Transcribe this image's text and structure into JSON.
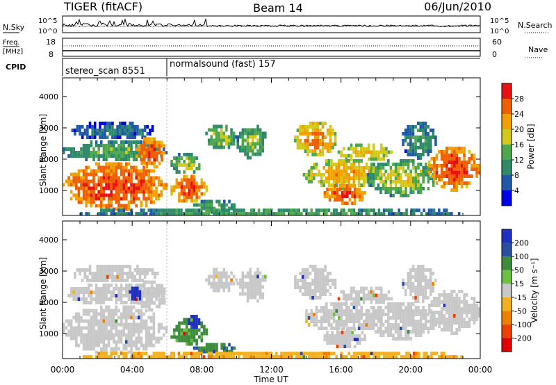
{
  "header": {
    "title": "TIGER (fitACF)",
    "beam": "Beam 14",
    "date": "06/Jun/2010"
  },
  "strip": {
    "nsky_label": "N.Sky",
    "nsky_ticks": [
      "10^5",
      "10^0"
    ],
    "nsearch_label": "N.Search",
    "nsearch_ticks": [
      "10^5",
      "10^0"
    ],
    "freq_label": "Freq.",
    "freq_unit": "[MHz]",
    "freq_ticks": [
      "18",
      "8"
    ],
    "nave_label": "Nave",
    "nave_ticks": [
      "60",
      "0"
    ],
    "cpid_label": "CPID",
    "cpid_segments": [
      {
        "name": "stereo_scan",
        "id": "8551",
        "start_h": 0,
        "end_h": 6
      },
      {
        "name": "normalsound (fast)",
        "id": "157",
        "start_h": 6,
        "end_h": 24
      }
    ]
  },
  "axes": {
    "ylabel": "Slant Range [km]",
    "xlabel": "Time UT",
    "yticks": [
      "1000",
      "2000",
      "3000",
      "4000"
    ],
    "xticks": [
      "00:00",
      "04:00",
      "08:00",
      "12:00",
      "16:00",
      "20:00",
      "00:00"
    ]
  },
  "power_scale": {
    "label": "Power [dB]",
    "ticks": [
      "4",
      "8",
      "12",
      "16",
      "20",
      "24",
      "28"
    ],
    "colors": [
      "#0000e6",
      "#1e5aa8",
      "#2f8a6a",
      "#4ca84a",
      "#d4c81a",
      "#f0a000",
      "#f06000",
      "#e81010"
    ]
  },
  "velocity_scale": {
    "label": "Velocity [m s⁻¹]",
    "ticks": [
      "200",
      "100",
      "50",
      "15",
      "-15",
      "-50",
      "-100",
      "-200"
    ],
    "colors": [
      "#2030c0",
      "#2850a0",
      "#3c8c3c",
      "#6cc040",
      "#c8c8c8",
      "#f0b020",
      "#f08000",
      "#f04000",
      "#e00000"
    ]
  },
  "chart_data": [
    {
      "type": "heatmap",
      "name": "Power",
      "xlabel": "Time UT",
      "ylabel": "Slant Range [km]",
      "xlim_hours": [
        0,
        24
      ],
      "ylim_km": [
        200,
        4600
      ],
      "colorbar": {
        "label": "Power [dB]",
        "range": [
          0,
          30
        ]
      },
      "regions": [
        {
          "t0": 0.0,
          "t1": 6.0,
          "r0": 350,
          "r1": 1900,
          "level": 22,
          "peak": 28
        },
        {
          "t0": 0.0,
          "t1": 6.0,
          "r0": 1900,
          "r1": 2600,
          "level": 8,
          "peak": 14
        },
        {
          "t0": 0.5,
          "t1": 5.5,
          "r0": 2600,
          "r1": 3200,
          "level": 4,
          "peak": 8
        },
        {
          "t0": 4.2,
          "t1": 6.0,
          "r0": 1700,
          "r1": 2700,
          "level": 20,
          "peak": 28
        },
        {
          "t0": 6.2,
          "t1": 8.3,
          "r0": 600,
          "r1": 1500,
          "level": 20,
          "peak": 28
        },
        {
          "t0": 6.2,
          "t1": 8.0,
          "r0": 1500,
          "r1": 2200,
          "level": 10,
          "peak": 18
        },
        {
          "t0": 7.5,
          "t1": 10.0,
          "r0": 300,
          "r1": 700,
          "level": 8,
          "peak": 14
        },
        {
          "t0": 8.2,
          "t1": 10.0,
          "r0": 2300,
          "r1": 3100,
          "level": 10,
          "peak": 16
        },
        {
          "t0": 10.0,
          "t1": 11.8,
          "r0": 2000,
          "r1": 3100,
          "level": 8,
          "peak": 16
        },
        {
          "t0": 13.3,
          "t1": 15.8,
          "r0": 2100,
          "r1": 3200,
          "level": 16,
          "peak": 24
        },
        {
          "t0": 15.8,
          "t1": 19.0,
          "r0": 1900,
          "r1": 2500,
          "level": 14,
          "peak": 20
        },
        {
          "t0": 13.8,
          "t1": 18.5,
          "r0": 1050,
          "r1": 2000,
          "level": 14,
          "peak": 22
        },
        {
          "t0": 15.0,
          "t1": 17.5,
          "r0": 550,
          "r1": 1200,
          "level": 22,
          "peak": 28
        },
        {
          "t0": 17.5,
          "t1": 21.5,
          "r0": 800,
          "r1": 2000,
          "level": 10,
          "peak": 18
        },
        {
          "t0": 21.0,
          "t1": 24.0,
          "r0": 1000,
          "r1": 2400,
          "level": 22,
          "peak": 28
        },
        {
          "t0": 19.5,
          "t1": 21.5,
          "r0": 2000,
          "r1": 3200,
          "level": 6,
          "peak": 12
        },
        {
          "t0": 0.0,
          "t1": 24.0,
          "r0": 180,
          "r1": 420,
          "level": 6,
          "peak": 14
        }
      ]
    },
    {
      "type": "heatmap",
      "name": "Velocity",
      "xlabel": "Time UT",
      "ylabel": "Slant Range [km]",
      "xlim_hours": [
        0,
        24
      ],
      "ylim_km": [
        200,
        4600
      ],
      "colorbar": {
        "label": "Velocity [m s⁻¹]",
        "range": [
          -200,
          200
        ]
      },
      "regions": [
        {
          "t0": 0.0,
          "t1": 6.0,
          "r0": 350,
          "r1": 1900,
          "value": 0
        },
        {
          "t0": 0.0,
          "t1": 6.0,
          "r0": 1900,
          "r1": 2600,
          "value": 0
        },
        {
          "t0": 0.5,
          "t1": 5.5,
          "r0": 2600,
          "r1": 3200,
          "value": 0
        },
        {
          "t0": 4.2,
          "t1": 6.0,
          "r0": 1700,
          "r1": 2700,
          "value": 0
        },
        {
          "t0": 3.8,
          "t1": 4.6,
          "r0": 2000,
          "r1": 2500,
          "value": 180
        },
        {
          "t0": 6.2,
          "t1": 8.3,
          "r0": 600,
          "r1": 1500,
          "value": 40
        },
        {
          "t0": 7.2,
          "t1": 7.9,
          "r0": 1100,
          "r1": 1600,
          "value": 190
        },
        {
          "t0": 7.5,
          "t1": 10.0,
          "r0": 300,
          "r1": 700,
          "value": 70
        },
        {
          "t0": 8.2,
          "t1": 10.0,
          "r0": 2300,
          "r1": 3100,
          "value": 0
        },
        {
          "t0": 10.0,
          "t1": 11.8,
          "r0": 2000,
          "r1": 3100,
          "value": 0
        },
        {
          "t0": 13.3,
          "t1": 15.8,
          "r0": 2100,
          "r1": 3200,
          "value": 0
        },
        {
          "t0": 15.8,
          "t1": 19.0,
          "r0": 1900,
          "r1": 2500,
          "value": 0
        },
        {
          "t0": 13.8,
          "t1": 18.5,
          "r0": 1050,
          "r1": 2000,
          "value": 0
        },
        {
          "t0": 15.0,
          "t1": 17.5,
          "r0": 550,
          "r1": 1200,
          "value": 0
        },
        {
          "t0": 17.5,
          "t1": 21.5,
          "r0": 800,
          "r1": 2000,
          "value": 0
        },
        {
          "t0": 21.0,
          "t1": 24.0,
          "r0": 1000,
          "r1": 2400,
          "value": 0
        },
        {
          "t0": 19.5,
          "t1": 21.5,
          "r0": 2000,
          "r1": 3200,
          "value": 0
        },
        {
          "t0": 0.0,
          "t1": 24.0,
          "r0": 180,
          "r1": 420,
          "value": -40
        }
      ]
    }
  ]
}
